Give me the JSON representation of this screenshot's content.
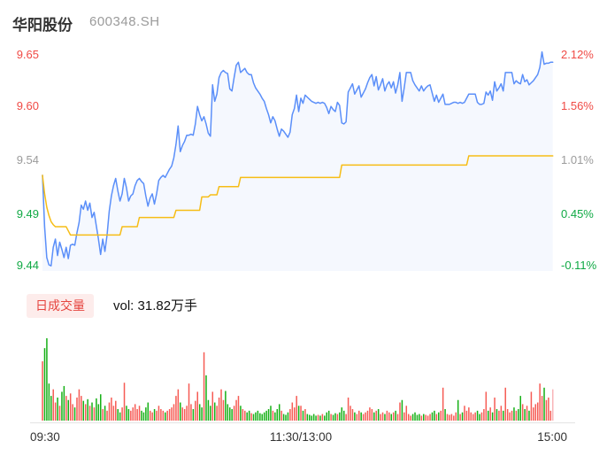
{
  "header": {
    "title": "华阳股份",
    "code": "600348.SH"
  },
  "price_axis": {
    "left": [
      {
        "text": "9.65",
        "state": "up"
      },
      {
        "text": "9.60",
        "state": "up"
      },
      {
        "text": "9.54",
        "state": "flat"
      },
      {
        "text": "9.49",
        "state": "down"
      },
      {
        "text": "9.44",
        "state": "down"
      }
    ],
    "right": [
      {
        "text": "2.12%",
        "state": "up"
      },
      {
        "text": "1.56%",
        "state": "up"
      },
      {
        "text": "1.01%",
        "state": "flat"
      },
      {
        "text": "0.45%",
        "state": "down"
      },
      {
        "text": "-0.11%",
        "state": "down"
      }
    ]
  },
  "legend": {
    "label": "日成交量",
    "value": "vol: 31.82万手"
  },
  "x_axis": {
    "labels": [
      "09:30",
      "11:30/13:00",
      "15:00"
    ]
  },
  "chart_data": {
    "type": "line",
    "title": "华阳股份 600348.SH intraday price/volume",
    "prev_close": 9.45,
    "ylim": [
      9.437,
      9.654
    ],
    "x_range": [
      "09:30",
      "15:00"
    ],
    "minutes": 240,
    "grid": false,
    "legend_position": "below-price-pane",
    "colors": {
      "price_line": "#5b8ff9",
      "price_fill": "#f5f8fe",
      "avg_line": "#f6bd16",
      "up_text": "#f04a45",
      "down_text": "#0fa944",
      "flat_text": "#9b9b9b",
      "vol_up": "#f65b54",
      "vol_down": "#16b016",
      "vol_last": "#f8b4b8"
    },
    "price": [
      9.53,
      9.48,
      9.45,
      9.443,
      9.442,
      9.46,
      9.468,
      9.452,
      9.465,
      9.458,
      9.45,
      9.46,
      9.449,
      9.462,
      9.463,
      9.462,
      9.474,
      9.484,
      9.501,
      9.497,
      9.505,
      9.496,
      9.503,
      9.489,
      9.494,
      9.481,
      9.468,
      9.453,
      9.468,
      9.456,
      9.472,
      9.495,
      9.51,
      9.52,
      9.527,
      9.515,
      9.505,
      9.512,
      9.527,
      9.518,
      9.505,
      9.51,
      9.512,
      9.52,
      9.525,
      9.527,
      9.524,
      9.522,
      9.51,
      9.5,
      9.508,
      9.512,
      9.502,
      9.512,
      9.525,
      9.528,
      9.53,
      9.528,
      9.532,
      9.536,
      9.539,
      9.547,
      9.56,
      9.578,
      9.553,
      9.559,
      9.563,
      9.569,
      9.569,
      9.57,
      9.569,
      9.58,
      9.597,
      9.589,
      9.583,
      9.587,
      9.58,
      9.571,
      9.568,
      9.618,
      9.602,
      9.609,
      9.625,
      9.63,
      9.632,
      9.63,
      9.629,
      9.614,
      9.612,
      9.625,
      9.637,
      9.64,
      9.63,
      9.632,
      9.634,
      9.63,
      9.628,
      9.628,
      9.62,
      9.615,
      9.612,
      9.609,
      9.605,
      9.602,
      9.595,
      9.589,
      9.581,
      9.587,
      9.583,
      9.575,
      9.568,
      9.575,
      9.573,
      9.57,
      9.567,
      9.572,
      9.589,
      9.595,
      9.608,
      9.592,
      9.605,
      9.6,
      9.608,
      9.606,
      9.604,
      9.602,
      9.601,
      9.6,
      9.601,
      9.6,
      9.601,
      9.6,
      9.596,
      9.59,
      9.597,
      9.594,
      9.592,
      9.601,
      9.598,
      9.581,
      9.58,
      9.582,
      9.611,
      9.615,
      9.619,
      9.609,
      9.613,
      9.617,
      9.606,
      9.61,
      9.614,
      9.62,
      9.625,
      9.628,
      9.617,
      9.626,
      9.613,
      9.618,
      9.624,
      9.612,
      9.618,
      9.621,
      9.615,
      9.621,
      9.61,
      9.618,
      9.63,
      9.602,
      9.615,
      9.63,
      9.63,
      9.63,
      9.622,
      9.618,
      9.615,
      9.612,
      9.617,
      9.612,
      9.615,
      9.617,
      9.618,
      9.61,
      9.602,
      9.608,
      9.601,
      9.605,
      9.609,
      9.599,
      9.599,
      9.599,
      9.6,
      9.601,
      9.601,
      9.6,
      9.601,
      9.6,
      9.601,
      9.605,
      9.609,
      9.609,
      9.609,
      9.609,
      9.601,
      9.599,
      9.599,
      9.6,
      9.611,
      9.608,
      9.612,
      9.603,
      9.621,
      9.612,
      9.615,
      9.619,
      9.612,
      9.63,
      9.63,
      9.63,
      9.63,
      9.619,
      9.622,
      9.62,
      9.619,
      9.628,
      9.621,
      9.623,
      9.618,
      9.62,
      9.622,
      9.625,
      9.628,
      9.635,
      9.65,
      9.638,
      9.639,
      9.639,
      9.64,
      9.64
    ],
    "avg": [
      9.53,
      9.512,
      9.499,
      9.491,
      9.485,
      9.482,
      9.48,
      9.48,
      9.48,
      9.48,
      9.48,
      9.48,
      9.476,
      9.472,
      9.472,
      9.472,
      9.472,
      9.472,
      9.472,
      9.472,
      9.472,
      9.472,
      9.472,
      9.472,
      9.472,
      9.472,
      9.472,
      9.472,
      9.472,
      9.472,
      9.472,
      9.472,
      9.472,
      9.472,
      9.472,
      9.472,
      9.472,
      9.48,
      9.48,
      9.48,
      9.48,
      9.48,
      9.48,
      9.48,
      9.48,
      9.489,
      9.489,
      9.489,
      9.489,
      9.489,
      9.489,
      9.489,
      9.489,
      9.489,
      9.489,
      9.489,
      9.489,
      9.489,
      9.489,
      9.489,
      9.489,
      9.489,
      9.496,
      9.496,
      9.496,
      9.496,
      9.496,
      9.496,
      9.496,
      9.496,
      9.496,
      9.496,
      9.496,
      9.496,
      9.509,
      9.509,
      9.509,
      9.509,
      9.511,
      9.511,
      9.511,
      9.511,
      9.519,
      9.519,
      9.519,
      9.519,
      9.519,
      9.519,
      9.519,
      9.519,
      9.519,
      9.519,
      9.528,
      9.528,
      9.528,
      9.528,
      9.528,
      9.528,
      9.528,
      9.528,
      9.528,
      9.528,
      9.528,
      9.528,
      9.528,
      9.528,
      9.528,
      9.528,
      9.528,
      9.528,
      9.528,
      9.528,
      9.528,
      9.528,
      9.528,
      9.528,
      9.528,
      9.528,
      9.528,
      9.528,
      9.528,
      9.528,
      9.528,
      9.528,
      9.528,
      9.528,
      9.528,
      9.528,
      9.528,
      9.528,
      9.528,
      9.528,
      9.528,
      9.528,
      9.528,
      9.528,
      9.528,
      9.528,
      9.528,
      9.54,
      9.54,
      9.54,
      9.54,
      9.54,
      9.54,
      9.54,
      9.54,
      9.54,
      9.54,
      9.54,
      9.54,
      9.54,
      9.54,
      9.54,
      9.54,
      9.54,
      9.54,
      9.54,
      9.54,
      9.54,
      9.54,
      9.54,
      9.54,
      9.54,
      9.54,
      9.54,
      9.54,
      9.54,
      9.54,
      9.54,
      9.54,
      9.54,
      9.54,
      9.54,
      9.54,
      9.54,
      9.54,
      9.54,
      9.54,
      9.54,
      9.54,
      9.54,
      9.54,
      9.54,
      9.54,
      9.54,
      9.54,
      9.54,
      9.54,
      9.54,
      9.54,
      9.54,
      9.54,
      9.54,
      9.54,
      9.54,
      9.54,
      9.54,
      9.549,
      9.549,
      9.549,
      9.549,
      9.549,
      9.549,
      9.549,
      9.549,
      9.549,
      9.549,
      9.549,
      9.549,
      9.549,
      9.549,
      9.549,
      9.549,
      9.549,
      9.549,
      9.549,
      9.549,
      9.549,
      9.549,
      9.549,
      9.549,
      9.549,
      9.549,
      9.549,
      9.549,
      9.549,
      9.549,
      9.549,
      9.549,
      9.549,
      9.549,
      9.549,
      9.549,
      9.549,
      9.549,
      9.549,
      9.549
    ],
    "volume": [
      72,
      88,
      100,
      45,
      30,
      38,
      22,
      28,
      18,
      35,
      42,
      30,
      25,
      33,
      20,
      16,
      28,
      38,
      30,
      24,
      20,
      26,
      18,
      22,
      16,
      27,
      20,
      32,
      14,
      18,
      12,
      22,
      28,
      18,
      24,
      14,
      10,
      16,
      46,
      18,
      14,
      12,
      16,
      20,
      14,
      18,
      12,
      10,
      16,
      22,
      12,
      10,
      14,
      12,
      18,
      14,
      12,
      10,
      12,
      14,
      16,
      20,
      30,
      38,
      22,
      16,
      14,
      18,
      45,
      20,
      14,
      24,
      35,
      20,
      16,
      83,
      55,
      25,
      18,
      35,
      22,
      18,
      28,
      38,
      25,
      36,
      20,
      16,
      14,
      18,
      25,
      30,
      18,
      14,
      12,
      10,
      12,
      9,
      8,
      10,
      12,
      9,
      8,
      10,
      12,
      14,
      18,
      12,
      10,
      14,
      20,
      12,
      8,
      7,
      10,
      14,
      22,
      16,
      30,
      18,
      18,
      12,
      14,
      8,
      7,
      6,
      8,
      6,
      7,
      6,
      8,
      6,
      10,
      12,
      8,
      7,
      9,
      8,
      10,
      16,
      12,
      8,
      28,
      18,
      14,
      10,
      8,
      12,
      10,
      8,
      10,
      12,
      16,
      14,
      10,
      12,
      14,
      8,
      10,
      8,
      12,
      10,
      8,
      10,
      12,
      8,
      22,
      25,
      10,
      18,
      8,
      6,
      8,
      10,
      7,
      8,
      6,
      8,
      7,
      6,
      8,
      10,
      12,
      8,
      10,
      12,
      40,
      14,
      8,
      7,
      8,
      6,
      10,
      25,
      8,
      10,
      18,
      12,
      16,
      10,
      8,
      10,
      12,
      8,
      10,
      14,
      35,
      12,
      16,
      10,
      28,
      14,
      12,
      18,
      12,
      40,
      14,
      10,
      12,
      16,
      12,
      14,
      30,
      20,
      14,
      18,
      12,
      35,
      16,
      20,
      22,
      45,
      30,
      40,
      25,
      28,
      12,
      38
    ]
  }
}
